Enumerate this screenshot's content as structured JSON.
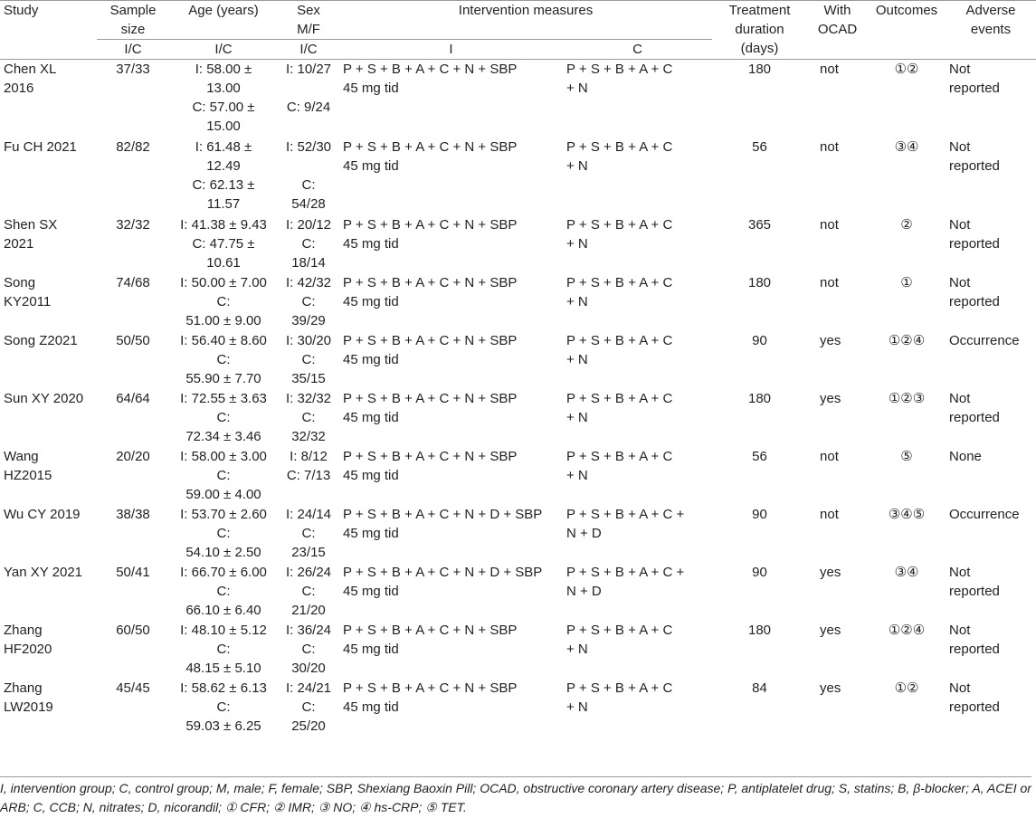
{
  "headers": {
    "study": "Study",
    "sample_size": [
      "Sample",
      "size"
    ],
    "age": "Age (years)",
    "sex": [
      "Sex",
      "M/F"
    ],
    "intervention": "Intervention measures",
    "duration": [
      "Treatment",
      "duration",
      "(days)"
    ],
    "ocad": [
      "With",
      "OCAD"
    ],
    "outcomes": "Outcomes",
    "adverse": [
      "Adverse",
      "events"
    ],
    "sub_ic_1": "I/C",
    "sub_ic_2": "I/C",
    "sub_ic_3": "I/C",
    "sub_i": "I",
    "sub_c": "C"
  },
  "rows": [
    {
      "study": [
        "Chen XL",
        "2016"
      ],
      "sample": "37/33",
      "age": [
        "I: 58.00 ±",
        "13.00",
        "C: 57.00 ±",
        "15.00"
      ],
      "sex": [
        "I: 10/27",
        "",
        "C: 9/24"
      ],
      "int_i": [
        "P + S + B + A + C + N + SBP",
        "45 mg tid"
      ],
      "int_c": [
        "P + S + B + A + C",
        "+ N"
      ],
      "duration": "180",
      "ocad": "not",
      "outcomes": "①②",
      "adverse": [
        "Not",
        "reported"
      ]
    },
    {
      "study": [
        "Fu CH 2021"
      ],
      "sample": "82/82",
      "age": [
        "I: 61.48 ±",
        "12.49",
        "C: 62.13 ±",
        "11.57"
      ],
      "sex": [
        "I: 52/30",
        "",
        "C:",
        "54/28"
      ],
      "int_i": [
        "P + S + B + A + C + N + SBP",
        "45 mg tid"
      ],
      "int_c": [
        "P + S + B + A + C",
        "+ N"
      ],
      "duration": "56",
      "ocad": "not",
      "outcomes": "③④",
      "adverse": [
        "Not",
        "reported"
      ]
    },
    {
      "study": [
        "Shen SX",
        "2021"
      ],
      "sample": "32/32",
      "age": [
        "I: 41.38 ± 9.43",
        "C: 47.75 ±",
        "10.61"
      ],
      "sex": [
        "I: 20/12",
        "C:",
        "18/14"
      ],
      "int_i": [
        "P + S + B + A + C + N + SBP",
        "45 mg tid"
      ],
      "int_c": [
        "P + S + B + A + C",
        "+ N"
      ],
      "duration": "365",
      "ocad": "not",
      "outcomes": "②",
      "adverse": [
        "Not",
        "reported"
      ]
    },
    {
      "study": [
        "Song",
        "KY2011"
      ],
      "sample": "74/68",
      "age": [
        "I: 50.00 ± 7.00",
        "C:",
        "51.00 ± 9.00"
      ],
      "sex": [
        "I: 42/32",
        "C:",
        "39/29"
      ],
      "int_i": [
        "P + S + B + A + C + N + SBP",
        "45 mg tid"
      ],
      "int_c": [
        "P + S + B + A + C",
        "+ N"
      ],
      "duration": "180",
      "ocad": "not",
      "outcomes": "①",
      "adverse": [
        "Not",
        "reported"
      ]
    },
    {
      "study": [
        "Song Z2021"
      ],
      "sample": "50/50",
      "age": [
        "I: 56.40 ± 8.60",
        "C:",
        "55.90 ± 7.70"
      ],
      "sex": [
        "I: 30/20",
        "C:",
        "35/15"
      ],
      "int_i": [
        "P + S + B + A + C + N + SBP",
        "45 mg tid"
      ],
      "int_c": [
        "P + S + B + A + C",
        "+ N"
      ],
      "duration": "90",
      "ocad": "yes",
      "outcomes": "①②④",
      "adverse": [
        "Occurrence"
      ]
    },
    {
      "study": [
        "Sun XY 2020"
      ],
      "sample": "64/64",
      "age": [
        "I: 72.55 ± 3.63",
        "C:",
        "72.34 ± 3.46"
      ],
      "sex": [
        "I: 32/32",
        "C:",
        "32/32"
      ],
      "int_i": [
        "P + S + B + A + C + N + SBP",
        "45 mg tid"
      ],
      "int_c": [
        "P + S + B + A + C",
        "+ N"
      ],
      "duration": "180",
      "ocad": "yes",
      "outcomes": "①②③",
      "adverse": [
        "Not",
        "reported"
      ]
    },
    {
      "study": [
        "Wang",
        "HZ2015"
      ],
      "sample": "20/20",
      "age": [
        "I: 58.00 ± 3.00",
        "C:",
        "59.00 ± 4.00"
      ],
      "sex": [
        "I: 8/12",
        "C: 7/13"
      ],
      "int_i": [
        "P + S + B + A + C + N + SBP",
        "45 mg tid"
      ],
      "int_c": [
        "P + S + B + A + C",
        "+ N"
      ],
      "duration": "56",
      "ocad": "not",
      "outcomes": "⑤",
      "adverse": [
        "None"
      ]
    },
    {
      "study": [
        "Wu CY 2019"
      ],
      "sample": "38/38",
      "age": [
        "I: 53.70 ± 2.60",
        "C:",
        "54.10 ± 2.50"
      ],
      "sex": [
        "I: 24/14",
        "C:",
        "23/15"
      ],
      "int_i": [
        "P + S + B + A + C + N + D + SBP",
        "45 mg tid"
      ],
      "int_c": [
        "P + S + B + A + C +",
        "N + D"
      ],
      "duration": "90",
      "ocad": "not",
      "outcomes": "③④⑤",
      "adverse": [
        "Occurrence"
      ]
    },
    {
      "study": [
        "Yan XY 2021"
      ],
      "sample": "50/41",
      "age": [
        "I: 66.70 ± 6.00",
        "C:",
        "66.10 ± 6.40"
      ],
      "sex": [
        "I: 26/24",
        "C:",
        "21/20"
      ],
      "int_i": [
        "P + S + B + A + C + N + D + SBP",
        "45 mg tid"
      ],
      "int_c": [
        "P + S + B + A + C +",
        "N + D"
      ],
      "duration": "90",
      "ocad": "yes",
      "outcomes": "③④",
      "adverse": [
        "Not",
        "reported"
      ]
    },
    {
      "study": [
        "Zhang",
        "HF2020"
      ],
      "sample": "60/50",
      "age": [
        "I: 48.10 ± 5.12",
        "C:",
        "48.15 ± 5.10"
      ],
      "sex": [
        "I: 36/24",
        "C:",
        "30/20"
      ],
      "int_i": [
        "P + S + B + A + C + N + SBP",
        "45 mg tid"
      ],
      "int_c": [
        "P + S + B + A + C",
        "+ N"
      ],
      "duration": "180",
      "ocad": "yes",
      "outcomes": "①②④",
      "adverse": [
        "Not",
        "reported"
      ]
    },
    {
      "study": [
        "Zhang",
        "LW2019"
      ],
      "sample": "45/45",
      "age": [
        "I: 58.62 ± 6.13",
        "C:",
        "59.03 ± 6.25"
      ],
      "sex": [
        "I: 24/21",
        "C:",
        "25/20"
      ],
      "int_i": [
        "P + S + B + A + C + N + SBP",
        "45 mg tid"
      ],
      "int_c": [
        "P + S + B + A + C",
        "+ N"
      ],
      "duration": "84",
      "ocad": "yes",
      "outcomes": "①②",
      "adverse": [
        "Not",
        "reported"
      ]
    }
  ],
  "footnote": [
    "I, intervention group; C, control group; M, male; F, female; SBP, Shexiang Baoxin Pill; OCAD, obstructive coronary artery disease; P, antiplatelet drug; S, statins; B, β-blocker; A, ACEI or",
    "ARB; C, CCB; N, nitrates; D, nicorandil; ① CFR; ② IMR; ③ NO; ④ hs-CRP; ⑤ TET."
  ]
}
